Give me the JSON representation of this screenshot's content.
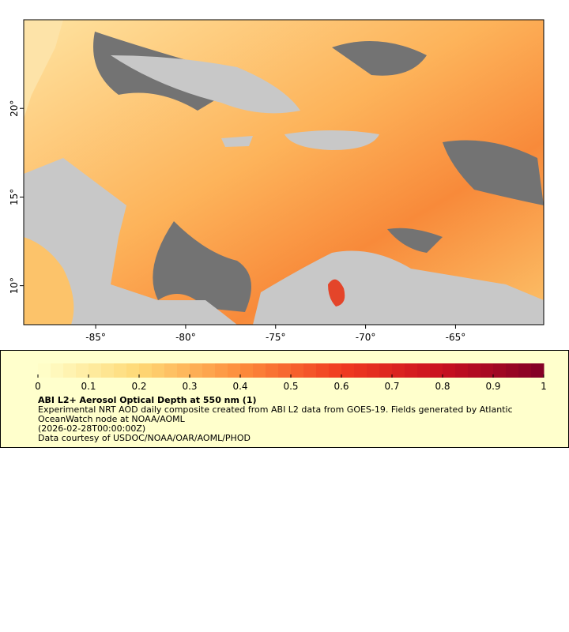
{
  "chart_data": {
    "type": "map",
    "xlim": [
      -89,
      -60.1
    ],
    "ylim": [
      7.8,
      25
    ],
    "xticks": [
      {
        "value": -85,
        "label": "-85°"
      },
      {
        "value": -80,
        "label": "-80°"
      },
      {
        "value": -75,
        "label": "-75°"
      },
      {
        "value": -70,
        "label": "-70°"
      },
      {
        "value": -65,
        "label": "-65°"
      }
    ],
    "yticks": [
      {
        "value": 10,
        "label": "10°"
      },
      {
        "value": 15,
        "label": "15°"
      },
      {
        "value": 20,
        "label": "20°"
      }
    ],
    "colorbar": {
      "range": [
        0,
        1
      ],
      "ticks": [
        0,
        0.1,
        0.2,
        0.3,
        0.4,
        0.5,
        0.6,
        0.7,
        0.8,
        0.9,
        1
      ]
    },
    "title": "ABI L2+ Aerosol Optical Depth at 550 nm (1)",
    "description": "Experimental NRT AOD daily composite created from ABI L2 data from GOES-19. Fields generated by Atlantic OceanWatch node at NOAA/AOML",
    "time": "(2026-02-28T00:00:00Z)",
    "credit": "Data courtesy of USDOC/NOAA/OAR/AOML/PHOD"
  }
}
